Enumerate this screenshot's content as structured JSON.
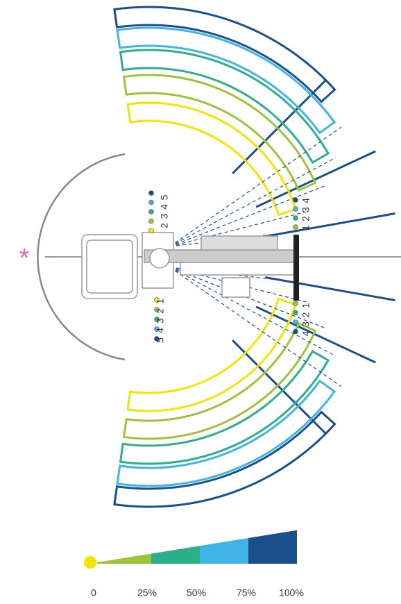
{
  "marker": "*",
  "dot_labels": {
    "upper_left": [
      "2",
      "3",
      "4",
      "5"
    ],
    "lower_left": [
      "5",
      "4",
      "3",
      "2",
      "1"
    ],
    "upper_right": [
      "1",
      "2",
      "3",
      "4"
    ],
    "lower_right": [
      "4",
      "3",
      "2",
      "1"
    ]
  },
  "legend": [
    "0",
    "25%",
    "50%",
    "75%",
    "100%"
  ]
}
